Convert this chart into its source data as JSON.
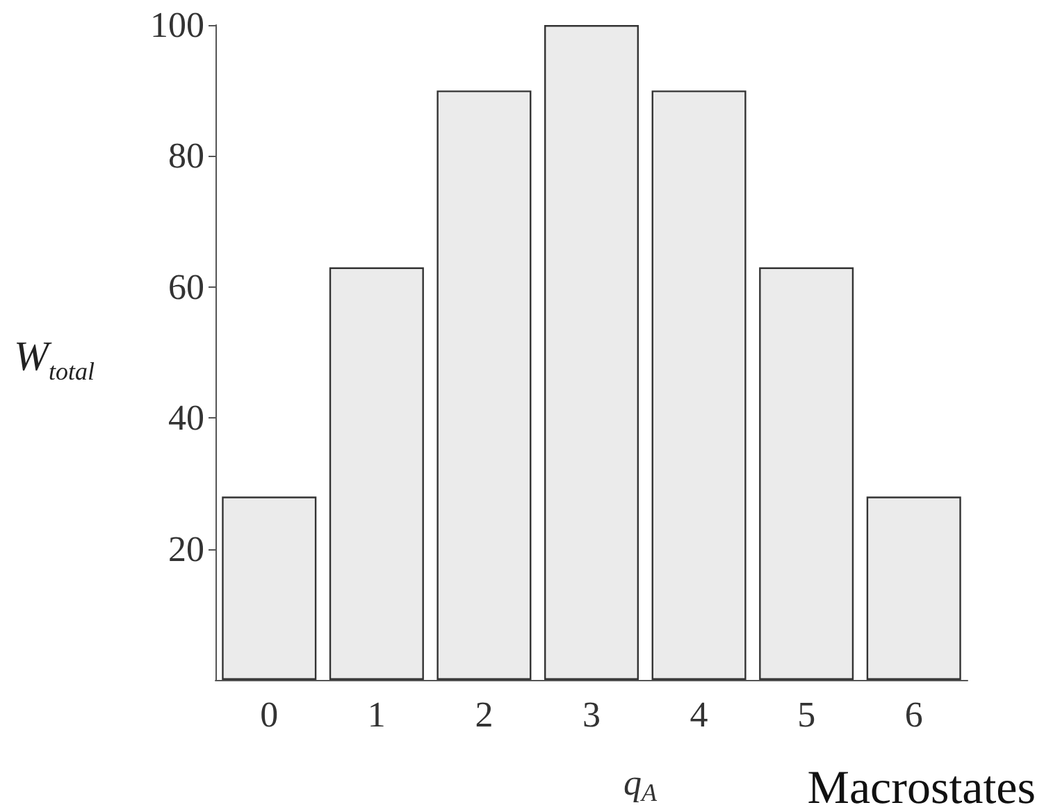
{
  "chart_data": {
    "type": "bar",
    "categories": [
      "0",
      "1",
      "2",
      "3",
      "4",
      "5",
      "6"
    ],
    "values": [
      28,
      63,
      90,
      100,
      90,
      63,
      28
    ],
    "color": "#ebebeb",
    "ylim": [
      0,
      100
    ],
    "yticks": [
      20,
      40,
      60,
      80,
      100
    ],
    "xlabel": "q$_{A}$",
    "ylabel": "W$_{total}$",
    "annotations": [
      "Macrostates"
    ],
    "grid": false
  }
}
